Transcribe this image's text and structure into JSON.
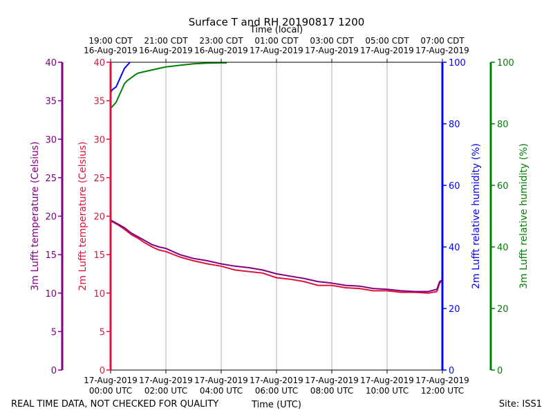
{
  "title": "Surface T and RH 20190817 1200",
  "top_axis_title": "Time (local)",
  "bottom_axis_title": "Time (UTC)",
  "footer_left": "REAL TIME DATA, NOT CHECKED FOR QUALITY",
  "footer_right": "Site: ISS1",
  "colors": {
    "t3m": "#800080",
    "t2m": "#dc143c",
    "rh2m": "#0000ff",
    "rh3m": "#008000",
    "grid": "#b0b0b0",
    "frame": "#000000"
  },
  "chart_data": {
    "type": "line",
    "title": "Surface T and RH 20190817 1200",
    "x": {
      "label": "Time (UTC)",
      "unit": "hours since 17-Aug-2019 00:00 UTC",
      "range": [
        0,
        12
      ],
      "ticks": [
        {
          "v": 0,
          "l1": "17-Aug-2019",
          "l2": "00:00 UTC"
        },
        {
          "v": 2,
          "l1": "17-Aug-2019",
          "l2": "02:00 UTC"
        },
        {
          "v": 4,
          "l1": "17-Aug-2019",
          "l2": "04:00 UTC"
        },
        {
          "v": 6,
          "l1": "17-Aug-2019",
          "l2": "06:00 UTC"
        },
        {
          "v": 8,
          "l1": "17-Aug-2019",
          "l2": "08:00 UTC"
        },
        {
          "v": 10,
          "l1": "17-Aug-2019",
          "l2": "10:00 UTC"
        },
        {
          "v": 12,
          "l1": "17-Aug-2019",
          "l2": "12:00 UTC"
        }
      ]
    },
    "x_top": {
      "label": "Time (local)",
      "ticks": [
        {
          "v": 0,
          "l1": "19:00 CDT",
          "l2": "16-Aug-2019"
        },
        {
          "v": 2,
          "l1": "21:00 CDT",
          "l2": "16-Aug-2019"
        },
        {
          "v": 4,
          "l1": "23:00 CDT",
          "l2": "16-Aug-2019"
        },
        {
          "v": 6,
          "l1": "01:00 CDT",
          "l2": "17-Aug-2019"
        },
        {
          "v": 8,
          "l1": "03:00 CDT",
          "l2": "17-Aug-2019"
        },
        {
          "v": 10,
          "l1": "05:00 CDT",
          "l2": "17-Aug-2019"
        },
        {
          "v": 12,
          "l1": "07:00 CDT",
          "l2": "17-Aug-2019"
        }
      ]
    },
    "axes": {
      "t3m": {
        "label": "3m Lufft temperature (Celsius)",
        "range": [
          0,
          40
        ],
        "ticks": [
          "0",
          "5",
          "10",
          "15",
          "20",
          "25",
          "30",
          "35",
          "40"
        ]
      },
      "t2m": {
        "label": "2m Lufft temperature (Celsius)",
        "range": [
          0,
          40
        ],
        "ticks": [
          "0",
          "5",
          "10",
          "15",
          "20",
          "25",
          "30",
          "35",
          "40"
        ]
      },
      "rh2m": {
        "label": "2m Lufft relative humidity (%)",
        "range": [
          0,
          100
        ],
        "ticks": [
          "0",
          "20",
          "40",
          "60",
          "80",
          "100"
        ]
      },
      "rh3m": {
        "label": "3m Lufft relative humidity (%)",
        "range": [
          0,
          100
        ],
        "ticks": [
          "0",
          "20",
          "40",
          "60",
          "80",
          "100"
        ]
      }
    },
    "grid": true,
    "series": [
      {
        "name": "3m Lufft temperature",
        "axis": "t3m",
        "x": [
          0,
          0.25,
          0.5,
          0.75,
          1,
          1.25,
          1.5,
          1.75,
          2,
          2.5,
          3,
          3.5,
          4,
          4.5,
          5,
          5.5,
          6,
          6.5,
          7,
          7.5,
          8,
          8.5,
          9,
          9.5,
          10,
          10.5,
          11,
          11.5,
          11.8,
          11.9,
          12
        ],
        "y": [
          19.5,
          19.0,
          18.5,
          17.8,
          17.3,
          16.8,
          16.3,
          16.0,
          15.8,
          15.0,
          14.5,
          14.2,
          13.8,
          13.5,
          13.3,
          13.0,
          12.5,
          12.2,
          11.9,
          11.5,
          11.3,
          11.0,
          10.9,
          10.6,
          10.5,
          10.3,
          10.2,
          10.2,
          10.5,
          11.5,
          11.7
        ]
      },
      {
        "name": "2m Lufft temperature",
        "axis": "t2m",
        "x": [
          0,
          0.25,
          0.5,
          0.75,
          1,
          1.25,
          1.5,
          1.75,
          2,
          2.5,
          3,
          3.5,
          4,
          4.5,
          5,
          5.5,
          6,
          6.5,
          7,
          7.5,
          8,
          8.5,
          9,
          9.5,
          10,
          10.5,
          11,
          11.5,
          11.8,
          11.9,
          12
        ],
        "y": [
          19.4,
          18.9,
          18.3,
          17.6,
          17.1,
          16.5,
          16.0,
          15.6,
          15.4,
          14.7,
          14.2,
          13.8,
          13.5,
          13.0,
          12.8,
          12.6,
          12.0,
          11.8,
          11.5,
          11.0,
          11.0,
          10.7,
          10.6,
          10.3,
          10.3,
          10.1,
          10.1,
          10.0,
          10.2,
          11.3,
          11.7
        ]
      },
      {
        "name": "2m Lufft relative humidity",
        "axis": "rh2m",
        "x": [
          0,
          0.05,
          0.2,
          0.3,
          0.4,
          0.5,
          0.6,
          0.7
        ],
        "y": [
          90,
          91,
          92,
          94,
          96,
          98,
          99,
          100
        ]
      },
      {
        "name": "3m Lufft relative humidity",
        "axis": "rh3m",
        "x": [
          0,
          0.1,
          0.2,
          0.3,
          0.4,
          0.5,
          0.6,
          0.75,
          0.9,
          1.0,
          1.25,
          1.5,
          1.75,
          2,
          2.5,
          3,
          3.5,
          4,
          4.2
        ],
        "y": [
          85,
          86,
          87,
          89,
          91,
          93,
          94,
          95,
          96,
          96.5,
          97,
          97.5,
          98,
          98.5,
          99,
          99.5,
          99.7,
          99.8,
          99.8
        ]
      }
    ]
  }
}
